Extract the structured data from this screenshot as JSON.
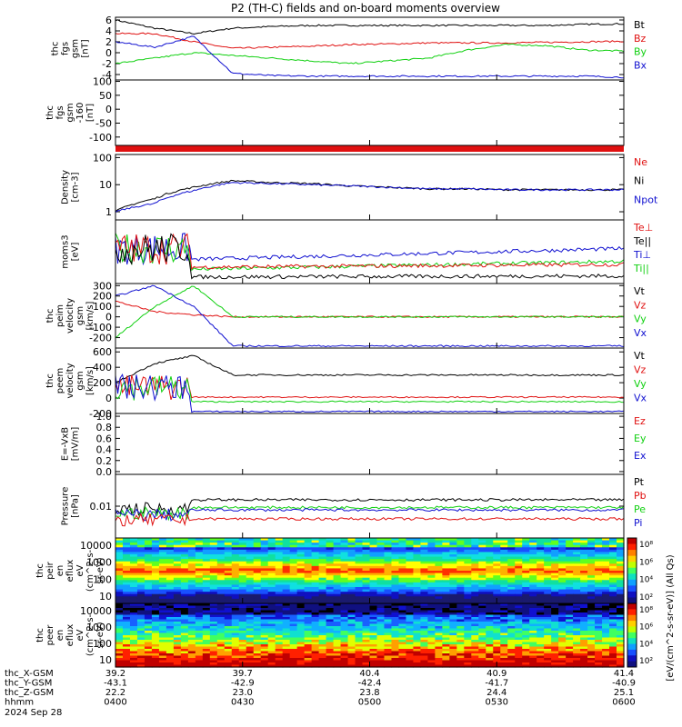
{
  "title": "P2 (TH-C) fields and on-board moments overview",
  "colors": {
    "black": "#000000",
    "red": "#e01010",
    "green": "#10d010",
    "blue": "#1010d0"
  },
  "chart_data": [
    {
      "id": "fgs",
      "type": "line",
      "ylabel": [
        "thc",
        "fgs",
        "gsm",
        "[nT]"
      ],
      "yticks": [
        "6",
        "4",
        "2",
        "0",
        "-2",
        "-4"
      ],
      "ylim": [
        -5,
        6.5
      ],
      "series": [
        {
          "name": "Bt",
          "color": "black",
          "values": [
            6,
            4.5,
            3.5,
            4.5,
            4.8,
            5,
            5,
            5,
            5,
            5,
            5,
            5,
            5.2,
            5.3
          ]
        },
        {
          "name": "Bz",
          "color": "red",
          "values": [
            3.5,
            3.5,
            2,
            0.8,
            1,
            1.2,
            1.5,
            1.6,
            1.8,
            1.8,
            1.8,
            1.9,
            2,
            2.1
          ]
        },
        {
          "name": "By",
          "color": "green",
          "values": [
            -2,
            -1,
            0,
            -0.5,
            -1,
            -1.5,
            -2,
            -1.5,
            -1,
            0.5,
            1.5,
            1.3,
            0.5,
            0.3
          ]
        },
        {
          "name": "Bx",
          "color": "blue",
          "values": [
            2,
            1,
            3,
            -3.8,
            -4.2,
            -4.3,
            -4.3,
            -4.3,
            -4.3,
            -4.3,
            -4.3,
            -4.3,
            -4.3,
            -4.5
          ]
        }
      ]
    },
    {
      "id": "fgs_hi",
      "type": "line",
      "ylabel": [
        "thc",
        "fgs",
        "gsm",
        "-160",
        "[nT]"
      ],
      "yticks": [
        "100",
        "50",
        "0",
        "-50",
        "-100"
      ],
      "ylim": [
        -130,
        105
      ],
      "series": []
    },
    {
      "id": "density",
      "type": "line",
      "log": true,
      "ylabel": [
        "Density",
        "[cm-3]"
      ],
      "yticks": [
        "100",
        "10",
        "1"
      ],
      "ylim": [
        0.5,
        130
      ],
      "series": [
        {
          "name": "Ne",
          "color": "red",
          "values": []
        },
        {
          "name": "Ni",
          "color": "black",
          "values": [
            1,
            3,
            8,
            14,
            12,
            11,
            9,
            8,
            7,
            7,
            6.5,
            6.5,
            6.5,
            6.5
          ]
        },
        {
          "name": "Npot",
          "color": "blue",
          "values": [
            1,
            2,
            6,
            12,
            11,
            10,
            9,
            8,
            7,
            7,
            6.5,
            6.5,
            6.5,
            6.5
          ]
        }
      ]
    },
    {
      "id": "temp",
      "type": "line",
      "ylabel": [
        "moms3",
        "[eV]"
      ],
      "yticks": [],
      "series": [
        {
          "name": "Te⊥",
          "color": "red",
          "values": []
        },
        {
          "name": "Te||",
          "color": "black",
          "values": []
        },
        {
          "name": "Ti⊥",
          "color": "blue",
          "values": []
        },
        {
          "name": "Ti||",
          "color": "green",
          "values": []
        }
      ]
    },
    {
      "id": "peim",
      "type": "line",
      "ylabel": [
        "thc",
        "peim",
        "velocity",
        "gsm",
        "[km/s]"
      ],
      "yticks": [
        "300",
        "200",
        "100",
        "0",
        "-100",
        "-200"
      ],
      "ylim": [
        -300,
        320
      ],
      "series": [
        {
          "name": "Vt",
          "color": "black",
          "values": []
        },
        {
          "name": "Vz",
          "color": "red",
          "values": [
            150,
            50,
            20,
            0,
            0,
            0,
            0,
            0,
            0,
            0,
            0,
            0,
            0,
            0
          ]
        },
        {
          "name": "Vy",
          "color": "green",
          "values": [
            -200,
            100,
            300,
            0,
            0,
            0,
            0,
            0,
            0,
            0,
            0,
            0,
            0,
            0
          ]
        },
        {
          "name": "Vx",
          "color": "blue",
          "values": [
            200,
            300,
            100,
            -280,
            -280,
            -280,
            -280,
            -280,
            -280,
            -280,
            -280,
            -280,
            -280,
            -280
          ]
        }
      ]
    },
    {
      "id": "peem",
      "type": "line",
      "ylabel": [
        "thc",
        "peem",
        "velocity",
        "gsm",
        "[km/s]"
      ],
      "yticks": [
        "600",
        "400",
        "200",
        "0",
        "-200"
      ],
      "ylim": [
        -200,
        650
      ],
      "series": [
        {
          "name": "Vt",
          "color": "black",
          "values": [
            200,
            450,
            550,
            300,
            300,
            300,
            300,
            300,
            300,
            300,
            300,
            300,
            300,
            300
          ]
        },
        {
          "name": "Vz",
          "color": "red",
          "values": []
        },
        {
          "name": "Vy",
          "color": "green",
          "values": []
        },
        {
          "name": "Vx",
          "color": "blue",
          "values": []
        }
      ]
    },
    {
      "id": "efield",
      "type": "line",
      "ylabel": [
        "E=-VxB",
        "[mV/m]"
      ],
      "yticks": [
        "1.0",
        "0.8",
        "0.6",
        "0.4",
        "0.2",
        "0.0"
      ],
      "ylim": [
        -0.05,
        1.05
      ],
      "series": [
        {
          "name": "Ez",
          "color": "red",
          "values": []
        },
        {
          "name": "Ey",
          "color": "green",
          "values": []
        },
        {
          "name": "Ex",
          "color": "blue",
          "values": []
        }
      ]
    },
    {
      "id": "pressure",
      "type": "line",
      "log": true,
      "ylabel": [
        "Pressure",
        "[nPa]"
      ],
      "yticks": [
        "0.01"
      ],
      "series": [
        {
          "name": "Pt",
          "color": "black",
          "values": []
        },
        {
          "name": "Pb",
          "color": "red",
          "values": []
        },
        {
          "name": "Pe",
          "color": "green",
          "values": []
        },
        {
          "name": "Pi",
          "color": "blue",
          "values": []
        }
      ]
    },
    {
      "id": "peir",
      "type": "heatmap",
      "ylabel": [
        "thc",
        "peir",
        "en",
        "eflux",
        "eV",
        "(cm^2-s-",
        "sr-eV)"
      ],
      "yticks": [
        "10000",
        "1000",
        "100",
        "10"
      ]
    },
    {
      "id": "peer",
      "type": "heatmap",
      "ylabel": [
        "thc",
        "peer",
        "en",
        "eflux",
        "eV",
        "(cm^2-s-",
        "sr-eV)"
      ],
      "yticks": [
        "10000",
        "1000",
        "100",
        "10"
      ]
    }
  ],
  "colorbar": {
    "labels": [
      "10⁸",
      "10⁶",
      "10⁴",
      "10²"
    ],
    "labels2": [
      "10⁸",
      "10⁶",
      "10⁴",
      "10²"
    ],
    "title": "[eV/(cm^2-s-sr-eV)] (All Qs)"
  },
  "xaxis": {
    "rows": [
      {
        "label": "thc_X-GSM",
        "values": [
          "39.2",
          "39.7",
          "40.4",
          "40.9",
          "41.4"
        ]
      },
      {
        "label": "thc_Y-GSM",
        "values": [
          "-43.1",
          "-42.9",
          "-42.4",
          "-41.7",
          "-40.9"
        ]
      },
      {
        "label": "thc_Z-GSM",
        "values": [
          "22.2",
          "23.0",
          "23.8",
          "24.4",
          "25.1"
        ]
      },
      {
        "label": "hhmm",
        "values": [
          "0400",
          "0430",
          "0500",
          "0530",
          "0600"
        ]
      }
    ],
    "date": "2024 Sep 28"
  }
}
